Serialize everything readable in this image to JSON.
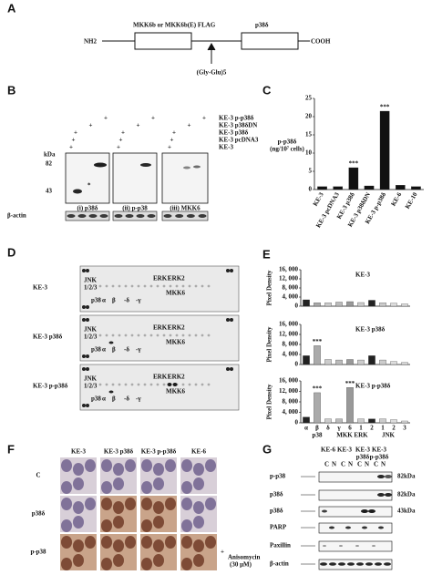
{
  "panel_labels": [
    "A",
    "B",
    "C",
    "D",
    "E",
    "F",
    "G"
  ],
  "A": {
    "nh2": "NH2",
    "cooh": "COOH",
    "box1": "MKK6b or MKK6b(E) FLAG",
    "box2": "p38δ",
    "linker": "(Gly-Glu)5"
  },
  "B": {
    "rows": [
      {
        "label": "KE-3 p-p38δ",
        "marks": [
          null,
          null,
          "+",
          null,
          null,
          "+",
          null,
          null,
          "+"
        ]
      },
      {
        "label": "KE-3 p38δDN",
        "marks": [
          null,
          "+",
          null,
          null,
          "+",
          null,
          null,
          "+",
          null
        ]
      },
      {
        "label": "KE-3 p38δ",
        "marks": [
          "+",
          null,
          null,
          "+",
          null,
          null,
          "+",
          null,
          null
        ]
      },
      {
        "label": "KE-3 pcDNA3",
        "marks": [
          "+",
          null,
          null,
          "+",
          null,
          null,
          "+",
          null,
          null
        ]
      },
      {
        "label": "KE-3",
        "marks": [
          "+",
          null,
          null,
          "+",
          null,
          null,
          "+",
          null,
          null
        ]
      }
    ],
    "kda": "kDa",
    "markers": [
      "82",
      "43"
    ],
    "asterisk": "*",
    "blots": [
      "(i) p38δ",
      "(ii) p-p38",
      "(iii) MKK6"
    ],
    "loading": "β-actin"
  },
  "D": {
    "samples": [
      "KE-3",
      "KE-3 p38δ",
      "KE-3 p-p38δ"
    ],
    "array_labels": [
      "JNK",
      "1/2/3",
      "p38",
      "α",
      "β",
      "-δ",
      "-γ",
      "ERK1",
      "ERK2",
      "MKK6"
    ]
  },
  "F": {
    "columns": [
      "KE-3",
      "KE-3 p38δ",
      "KE-3 p-p38δ",
      "KE-6"
    ],
    "rows": [
      "C",
      "p38δ",
      "p-p38"
    ],
    "treatment": [
      "+",
      "Anisomycin",
      "(30 μM)"
    ]
  },
  "G": {
    "columns": [
      [
        "KE-6"
      ],
      [
        "KE-3"
      ],
      [
        "KE-3",
        "p38δ"
      ],
      [
        "KE-3",
        "p-p38δ"
      ]
    ],
    "fractions": [
      "C",
      "N"
    ],
    "rows": [
      "p-p38",
      "p38δ",
      "p38δ",
      "PARP",
      "Paxillin",
      "β-actin"
    ],
    "sizes": [
      "82kDa",
      "82kDa",
      "43kDa"
    ]
  },
  "chart_data": [
    {
      "type": "bar",
      "ylabel": [
        "p-p38δ",
        "(ng/10⁷ cells)"
      ],
      "categories": [
        "KE-3",
        "KE-3 pcDNA3",
        "KE-3 p38δ",
        "KE-3 p38δDN",
        "KE-3 p-p38δ",
        "KE-6",
        "KE-10"
      ],
      "values": [
        0.8,
        0.8,
        6,
        1,
        21.5,
        1.2,
        0.8
      ],
      "color": "#111111",
      "ylim": [
        0,
        25
      ],
      "yticks": [
        0,
        5,
        10,
        15,
        20,
        25
      ],
      "annotations": [
        {
          "text": "***",
          "x": "KE-3 p38δ"
        },
        {
          "text": "***",
          "x": "KE-3 p-p38δ"
        }
      ]
    },
    {
      "type": "bar",
      "title": "KE-3",
      "ylabel": "Pixel Density",
      "values": [
        2800,
        1500,
        1500,
        1800,
        2000,
        1600,
        2600,
        1500,
        1300,
        1000
      ],
      "colors": [
        "#222222",
        "#aaaaaa",
        "#cccccc",
        "#bbbbbb",
        "#999999",
        "#cccccc",
        "#222222",
        "#cccccc",
        "#dddddd",
        "#dddddd"
      ],
      "ylim": [
        0,
        16000
      ],
      "yticks": [
        0,
        {
          "value": 4000,
          "label": "4, 000"
        },
        {
          "value": 8000,
          "label": "8, 000"
        },
        {
          "value": 12000,
          "label": "12, 000"
        },
        {
          "value": 16000,
          "label": "16, 000"
        }
      ],
      "annotations": []
    },
    {
      "type": "bar",
      "title": "KE-3 p38δ",
      "ylabel": "Pixel Density",
      "values": [
        3500,
        7500,
        2000,
        1800,
        2000,
        1800,
        3500,
        1800,
        1200,
        800
      ],
      "colors": [
        "#222222",
        "#aaaaaa",
        "#cccccc",
        "#bbbbbb",
        "#999999",
        "#cccccc",
        "#222222",
        "#cccccc",
        "#dddddd",
        "#dddddd"
      ],
      "ylim": [
        0,
        16000
      ],
      "yticks": [
        0,
        {
          "value": 4000,
          "label": "4, 000"
        },
        {
          "value": 8000,
          "label": "8, 000"
        },
        {
          "value": 12000,
          "label": "12, 000"
        },
        {
          "value": 16000,
          "label": "16, 000"
        }
      ],
      "annotations": [
        {
          "text": "***",
          "x": "β"
        }
      ]
    },
    {
      "type": "bar",
      "title": "KE-3 p-p38δ",
      "ylabel": "Pixel Density",
      "categories": [
        "α",
        "β",
        "δ",
        "γ",
        "6",
        "1",
        "2",
        "1",
        "2",
        "3"
      ],
      "x_groups": [
        "p38",
        "MKK",
        "ERK",
        "JNK"
      ],
      "values": [
        2200,
        11500,
        1500,
        1500,
        13500,
        1500,
        1500,
        1500,
        1200,
        700
      ],
      "colors": [
        "#222222",
        "#aaaaaa",
        "#cccccc",
        "#bbbbbb",
        "#999999",
        "#cccccc",
        "#222222",
        "#cccccc",
        "#dddddd",
        "#dddddd"
      ],
      "ylim": [
        0,
        16000
      ],
      "yticks": [
        0,
        {
          "value": 4000,
          "label": "4, 000"
        },
        {
          "value": 8000,
          "label": "8, 000"
        },
        {
          "value": 12000,
          "label": "12, 000"
        },
        {
          "value": 16000,
          "label": "16, 000"
        }
      ],
      "annotations": [
        {
          "text": "***",
          "x": "β"
        },
        {
          "text": "***",
          "x": "6"
        }
      ]
    }
  ]
}
